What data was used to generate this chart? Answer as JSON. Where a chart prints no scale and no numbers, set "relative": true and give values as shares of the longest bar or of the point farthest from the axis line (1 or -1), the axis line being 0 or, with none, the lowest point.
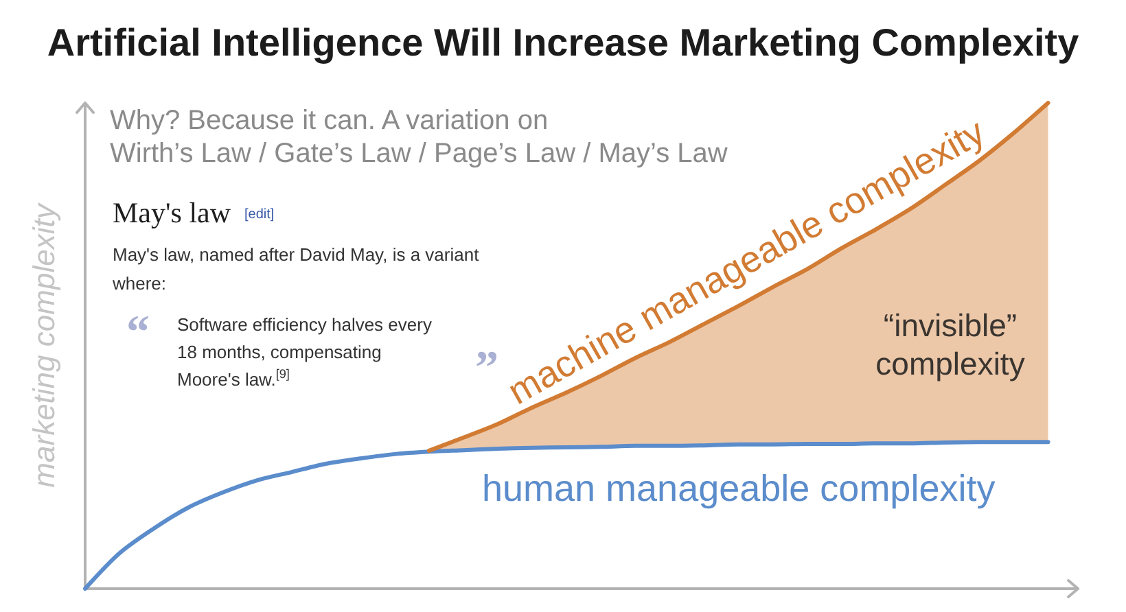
{
  "chart_data": {
    "type": "line",
    "relative": true,
    "marker": "none",
    "title": "Artificial Intelligence Will Increase Marketing Complexity",
    "ylabel": "marketing complexity",
    "categories": [
      null,
      null,
      null,
      null,
      null,
      null,
      null,
      null,
      null,
      null,
      null,
      null,
      null,
      null,
      null,
      null,
      null,
      null,
      null,
      null,
      null,
      null,
      null,
      null,
      null,
      null,
      null,
      null,
      null
    ],
    "series": [
      {
        "name": "human manageable complexity",
        "color": "#5b8ccb",
        "values": [
          0,
          0.073,
          0.124,
          0.167,
          0.198,
          0.223,
          0.24,
          0.257,
          0.268,
          0.277,
          0.282,
          0.285,
          0.288,
          0.29,
          0.291,
          0.292,
          0.294,
          0.294,
          0.295,
          0.297,
          0.297,
          0.298,
          0.298,
          0.299,
          0.299,
          0.301,
          0.302,
          0.302,
          0.302
        ]
      },
      {
        "name": "machine manageable complexity",
        "color": "#d27b33",
        "values": [
          null,
          null,
          null,
          null,
          null,
          null,
          null,
          null,
          null,
          null,
          0.284,
          0.311,
          0.339,
          0.373,
          0.404,
          0.438,
          0.475,
          0.508,
          0.545,
          0.582,
          0.621,
          0.658,
          0.701,
          0.74,
          0.782,
          0.831,
          0.881,
          0.938,
          1
        ],
        "lower": [
          null,
          null,
          null,
          null,
          null,
          null,
          null,
          null,
          null,
          null,
          0.282,
          0.285,
          0.288,
          0.29,
          0.291,
          0.292,
          0.294,
          0.294,
          0.295,
          0.297,
          0.297,
          0.298,
          0.298,
          0.299,
          0.299,
          0.301,
          0.302,
          0.302,
          0.302
        ],
        "upper": [
          null,
          null,
          null,
          null,
          null,
          null,
          null,
          null,
          null,
          null,
          0.284,
          0.311,
          0.339,
          0.373,
          0.404,
          0.438,
          0.475,
          0.508,
          0.545,
          0.582,
          0.621,
          0.658,
          0.701,
          0.74,
          0.782,
          0.831,
          0.881,
          0.938,
          1
        ]
      }
    ],
    "annotations": [
      "Why? Because it can. A variation on\nWirth’s Law / Gate’s Law / Page’s Law / May’s Law",
      "May's law",
      "[edit]",
      "May's law, named after David May, is a variant\nwhere:",
      "“",
      "Software efficiency halves every\n18 months, compensating\nMoore's law.$^{[9]}$",
      "”",
      "“invisible”\ncomplexity"
    ]
  }
}
